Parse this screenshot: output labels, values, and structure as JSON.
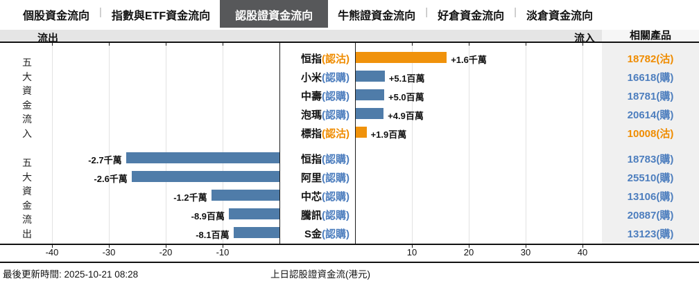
{
  "tabs": [
    "個股資金流向",
    "指數與ETF資金流向",
    "認股證資金流向",
    "牛熊證資金流向",
    "好倉資金流向",
    "淡倉資金流向"
  ],
  "active_tab": 2,
  "tab_separator": "|",
  "header": {
    "outflow_label": "流出",
    "inflow_label": "流入",
    "related_label": "相關產品"
  },
  "colors": {
    "bar_blue": "#4f7ca9",
    "bar_orange": "#f0920b",
    "text_blue": "#4d7ebe",
    "text_orange": "#ef8c00",
    "active_tab_bg": "#57585a"
  },
  "chart_data": {
    "type": "bar",
    "orientation": "horizontal",
    "value_unit": "millions HKD",
    "x_ticks": [
      -40,
      -30,
      -20,
      -10,
      10,
      20,
      30,
      40
    ],
    "grid": true,
    "series_groups": [
      {
        "group_title": "五大資金流入",
        "rows": [
          {
            "name": "恒指",
            "warrant_type": "認沽",
            "color": "orange",
            "value_millions": 16,
            "value_label": "+1.6千萬",
            "product": "18782(沽)"
          },
          {
            "name": "小米",
            "warrant_type": "認購",
            "color": "blue",
            "value_millions": 5.1,
            "value_label": "+5.1百萬",
            "product": "16618(購)"
          },
          {
            "name": "中壽",
            "warrant_type": "認購",
            "color": "blue",
            "value_millions": 5.0,
            "value_label": "+5.0百萬",
            "product": "18781(購)"
          },
          {
            "name": "泡瑪",
            "warrant_type": "認購",
            "color": "blue",
            "value_millions": 4.9,
            "value_label": "+4.9百萬",
            "product": "20614(購)"
          },
          {
            "name": "標指",
            "warrant_type": "認沽",
            "color": "orange",
            "value_millions": 1.9,
            "value_label": "+1.9百萬",
            "product": "10008(沽)"
          }
        ]
      },
      {
        "group_title": "五大資金流出",
        "rows": [
          {
            "name": "恒指",
            "warrant_type": "認購",
            "color": "blue",
            "value_millions": -27,
            "value_label": "-2.7千萬",
            "product": "18783(購)"
          },
          {
            "name": "阿里",
            "warrant_type": "認購",
            "color": "blue",
            "value_millions": -26,
            "value_label": "-2.6千萬",
            "product": "25510(購)"
          },
          {
            "name": "中芯",
            "warrant_type": "認購",
            "color": "blue",
            "value_millions": -12,
            "value_label": "-1.2千萬",
            "product": "13106(購)"
          },
          {
            "name": "騰訊",
            "warrant_type": "認購",
            "color": "blue",
            "value_millions": -8.9,
            "value_label": "-8.9百萬",
            "product": "20887(購)"
          },
          {
            "name": "S金",
            "warrant_type": "認購",
            "color": "blue",
            "value_millions": -8.1,
            "value_label": "-8.1百萬",
            "product": "13123(購)"
          }
        ]
      }
    ]
  },
  "footer": {
    "updated": "最後更新時間: 2025-10-21 08:28",
    "axis_title": "上日認股證資金流(港元)"
  }
}
